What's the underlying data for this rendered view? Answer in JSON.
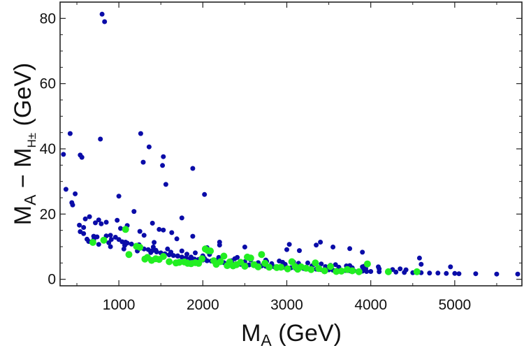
{
  "chart_data": {
    "type": "scatter",
    "title": "",
    "xlabel": {
      "base": "M",
      "sub": "A",
      "rest": " (GeV)"
    },
    "ylabel": {
      "base1": "M",
      "sub1": "A",
      "minus": " − M",
      "sub2": "H±",
      "rest": " (GeV)"
    },
    "xlim": [
      300,
      5800
    ],
    "ylim": [
      -2,
      85
    ],
    "xticks": [
      1000,
      2000,
      3000,
      4000,
      5000
    ],
    "yticks": [
      0,
      20,
      40,
      60,
      80
    ],
    "grid": false,
    "colors": {
      "blue": "#0a0ca8",
      "green": "#22ee22",
      "frame": "#222222"
    },
    "series": [
      {
        "name": "blue",
        "marker_radius": 3.5,
        "x": [
          800,
          830,
          420,
          340,
          370,
          540,
          560,
          440,
          450,
          480,
          530,
          580,
          600,
          650,
          700,
          720,
          760,
          790,
          850,
          900,
          960,
          1000,
          1040,
          1100,
          1150,
          1200,
          1250,
          1300,
          1350,
          1400,
          1450,
          1500,
          1550,
          1600,
          1650,
          1700,
          1750,
          1800,
          1850,
          1900,
          1950,
          2000,
          2050,
          2100,
          2150,
          2200,
          2250,
          2300,
          2350,
          2400,
          2450,
          2500,
          2550,
          2600,
          2650,
          2700,
          2750,
          2800,
          2850,
          2900,
          2950,
          3000,
          3050,
          3100,
          3150,
          3200,
          3250,
          3300,
          3350,
          3400,
          3450,
          3500,
          3550,
          3600,
          3650,
          3700,
          3750,
          3800,
          3850,
          3900,
          3950,
          4000,
          4100,
          4200,
          4300,
          4400,
          4500,
          4600,
          4700,
          4800,
          4900,
          5000,
          5050,
          5250,
          5500,
          5750,
          780,
          1260,
          1360,
          1530,
          1560,
          1880,
          2020,
          1630,
          1000,
          1290,
          1520,
          1880,
          1180,
          1420,
          1750,
          1020,
          1300,
          540,
          620,
          850,
          980,
          1100,
          1250,
          1400,
          1480,
          1530,
          2050,
          2200,
          2500,
          3030,
          3150,
          3400,
          3750,
          4580,
          1690,
          2200,
          3000,
          3350,
          3550,
          3900,
          4350,
          4600,
          4950,
          640,
          760,
          900,
          1060,
          1220,
          1380,
          1540,
          1700,
          1860,
          2020,
          2180,
          2340,
          2500,
          2660,
          2820,
          2980,
          3140,
          3300,
          3460,
          3620,
          3780,
          3940,
          4100,
          4260,
          4420,
          700,
          880,
          1070,
          1250,
          1440,
          1620,
          1810,
          2000,
          2190,
          2380,
          2570,
          2760,
          2950,
          3140,
          3330,
          3520,
          3710,
          3900,
          580,
          740,
          910,
          1080,
          1240,
          1410,
          1580,
          1750,
          1910,
          2080,
          2250,
          2410,
          2580,
          2750,
          2910,
          3080,
          3250,
          3410,
          3580,
          3750,
          3920,
          4090
        ],
        "y": [
          81.3,
          79,
          44.7,
          38.3,
          27.6,
          38.1,
          37.4,
          23.5,
          22.8,
          26.2,
          16.6,
          15.9,
          18.5,
          19.2,
          13.2,
          17.3,
          18.2,
          17,
          17.5,
          13.5,
          12.9,
          12.2,
          11.5,
          11.1,
          10.8,
          10.3,
          9.8,
          9.3,
          9.1,
          8.8,
          8.4,
          8.1,
          7.8,
          7.5,
          7.3,
          7.1,
          6.8,
          6.6,
          6.4,
          6.2,
          6.1,
          5.9,
          5.7,
          5.6,
          5.4,
          5.3,
          5.1,
          5,
          4.9,
          4.7,
          4.6,
          4.5,
          4.4,
          4.3,
          4.2,
          4.1,
          4,
          3.9,
          3.8,
          3.7,
          3.6,
          3.6,
          3.5,
          3.4,
          3.3,
          3.3,
          3.2,
          3.1,
          3.1,
          3,
          3,
          2.9,
          2.8,
          2.8,
          2.7,
          2.7,
          2.6,
          2.6,
          2.5,
          2.5,
          2.4,
          2.4,
          2.3,
          2.2,
          2.2,
          2.1,
          2,
          2,
          1.9,
          1.9,
          1.8,
          1.8,
          1.7,
          1.7,
          1.6,
          1.6,
          43,
          44.7,
          40.6,
          37.6,
          29.1,
          34,
          26,
          14.3,
          25.5,
          35.9,
          34.9,
          13.2,
          20.8,
          11.3,
          18.8,
          15.6,
          13.5,
          14.6,
          12.3,
          13.3,
          18.1,
          16.5,
          14.7,
          17.2,
          15.3,
          15.1,
          9.7,
          11.4,
          9.9,
          10.7,
          8.8,
          11.4,
          9.4,
          6.5,
          12.4,
          10.5,
          9.1,
          10.5,
          9.9,
          8.3,
          3.2,
          4.6,
          3.8,
          11.6,
          10.7,
          10,
          9.3,
          8.7,
          8.2,
          7.7,
          7.2,
          6.8,
          6.4,
          6,
          5.7,
          5.4,
          5.1,
          4.8,
          4.6,
          4.3,
          4.1,
          3.9,
          3.7,
          3.5,
          3.3,
          3.2,
          3,
          2.9,
          12.1,
          11.2,
          10.4,
          9.6,
          8.9,
          8.3,
          7.7,
          7.2,
          6.7,
          6.3,
          5.9,
          5.5,
          5.2,
          4.9,
          4.6,
          4.3,
          4.1,
          3.8,
          14,
          13,
          12.2,
          11.4,
          10.6,
          9.9,
          9.3,
          8.7,
          8.1,
          7.6,
          7.1,
          6.7,
          6.3,
          5.9,
          5.6,
          5.3,
          5,
          4.7,
          4.5,
          4.2,
          4,
          3.8
        ]
      },
      {
        "name": "green",
        "marker_radius": 5,
        "x": [
          690,
          820,
          1080,
          1120,
          1210,
          1250,
          1310,
          1340,
          1390,
          1440,
          1480,
          1530,
          1600,
          1680,
          1720,
          1780,
          1820,
          1860,
          1910,
          1950,
          1990,
          2030,
          2060,
          2090,
          2130,
          2160,
          2210,
          2250,
          2290,
          2320,
          2360,
          2400,
          2450,
          2500,
          2530,
          2570,
          2610,
          2660,
          2700,
          2740,
          2790,
          2880,
          2930,
          3010,
          3060,
          3100,
          3130,
          3170,
          3230,
          3290,
          3340,
          3380,
          3450,
          3520,
          3590,
          3650,
          3720,
          3780,
          3860,
          3960,
          4210,
          4550
        ],
        "y": [
          11.3,
          12,
          15.3,
          7.6,
          10.1,
          9.8,
          6.2,
          6.7,
          5.8,
          6.3,
          6.1,
          7,
          5.4,
          5,
          5.2,
          5.3,
          4.9,
          4.8,
          5.1,
          4.9,
          6.3,
          9.3,
          8.8,
          8.7,
          5.7,
          4.6,
          5.4,
          7.1,
          4.2,
          5.3,
          4.1,
          4.5,
          5.2,
          4,
          6.8,
          6.5,
          4.5,
          3.8,
          7.6,
          4.9,
          3.7,
          3.6,
          3.7,
          3.2,
          5.4,
          3.9,
          3.1,
          3.8,
          3.4,
          3,
          5,
          3.3,
          2.6,
          3.9,
          2.4,
          2.5,
          3,
          2.6,
          2.3,
          4.7,
          2.3,
          2.3
        ]
      }
    ]
  }
}
